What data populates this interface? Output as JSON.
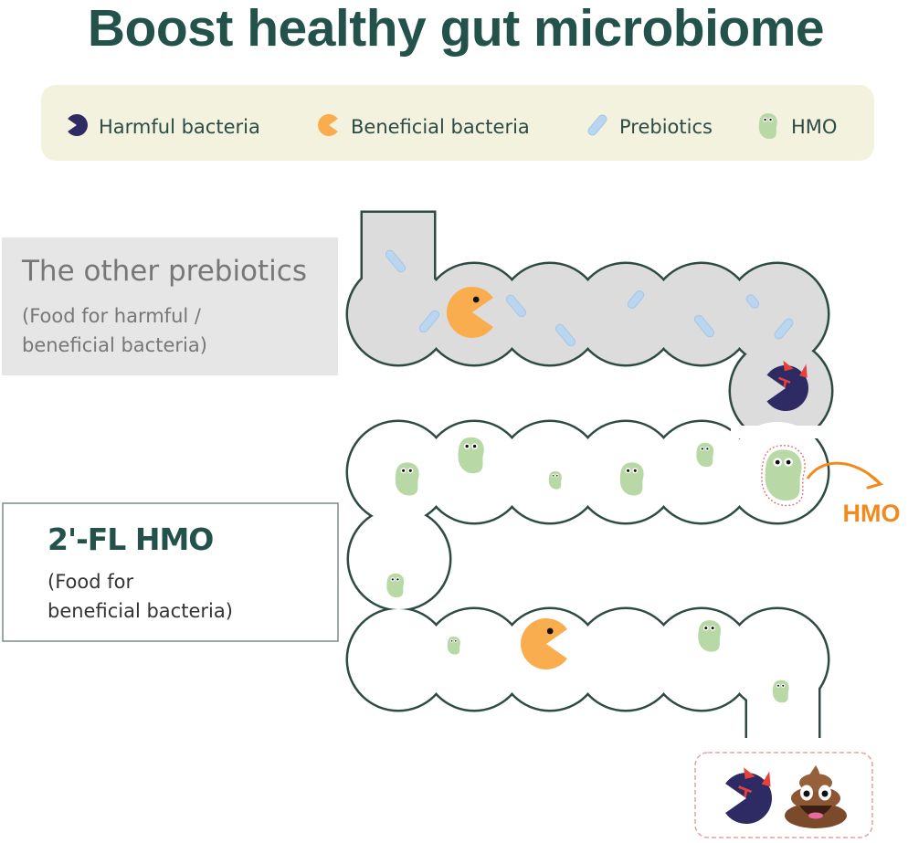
{
  "title": "Boost healthy gut microbiome",
  "legend": {
    "items": [
      {
        "label": "Harmful bacteria",
        "icon": "harmful-bacteria-icon"
      },
      {
        "label": "Beneficial bacteria",
        "icon": "beneficial-bacteria-icon"
      },
      {
        "label": "Prebiotics",
        "icon": "prebiotic-pill-icon"
      },
      {
        "label": "HMO",
        "icon": "hmo-bean-icon"
      }
    ]
  },
  "labels": {
    "other_prebiotics": {
      "title": "The other prebiotics",
      "line1": "(Food for harmful /",
      "line2": "beneficial bacteria)"
    },
    "hmo": {
      "title": "2'-FL HMO",
      "line1": "(Food for",
      "line2": "beneficial bacteria)"
    }
  },
  "hmo_callout": "HMO",
  "colors": {
    "title": "#22524a",
    "outline": "#2d4a45",
    "legend_bg": "#f3f2df",
    "gray_fill": "#dcdcdc",
    "harmful": "#2e2a63",
    "beneficial": "#f9ad4e",
    "prebiotic": "#b9d5ef",
    "hmo": "#b8d8a5",
    "accent_orange": "#f08a1c",
    "horn": "#e8413c"
  }
}
